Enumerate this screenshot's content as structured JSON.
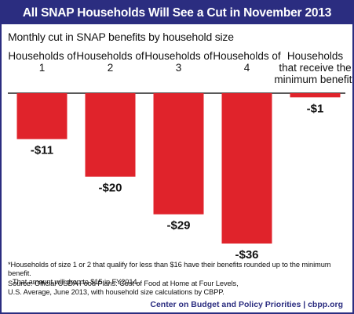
{
  "header": {
    "title": "All SNAP Households Will See a Cut in November 2013"
  },
  "chart_data": {
    "type": "bar",
    "title": "Monthly cut in SNAP benefits by household size",
    "categories": [
      [
        "Households of",
        "1"
      ],
      [
        "Households of",
        "2"
      ],
      [
        "Households of",
        "3"
      ],
      [
        "Households of",
        "4"
      ],
      [
        "Households",
        "that receive the",
        "minimum benefit*"
      ]
    ],
    "values": [
      -11,
      -20,
      -29,
      -36,
      -1
    ],
    "value_labels": [
      "-$11",
      "-$20",
      "-$29",
      "-$36",
      "-$1"
    ],
    "ylim": [
      -36,
      0
    ],
    "grid": false,
    "bar_color": "#e0232b"
  },
  "notes": {
    "footnote_lines": [
      "*Households of size 1 or 2 that qualify for less than $16 have their benefits rounded up to the minimum benefit.",
      "That amount will drop to $15 in FY2014."
    ],
    "source_lines": [
      "Source: Official USDA Food Plans: Cost of Food at Home at Four Levels,",
      "U.S. Average, June 2013, with household size calculations by CBPP."
    ],
    "credit": "Center on Budget and Policy Priorities | cbpp.org"
  },
  "colors": {
    "header_bg": "#2b2d80",
    "bar": "#e0232b",
    "credit": "#2b2d80"
  }
}
